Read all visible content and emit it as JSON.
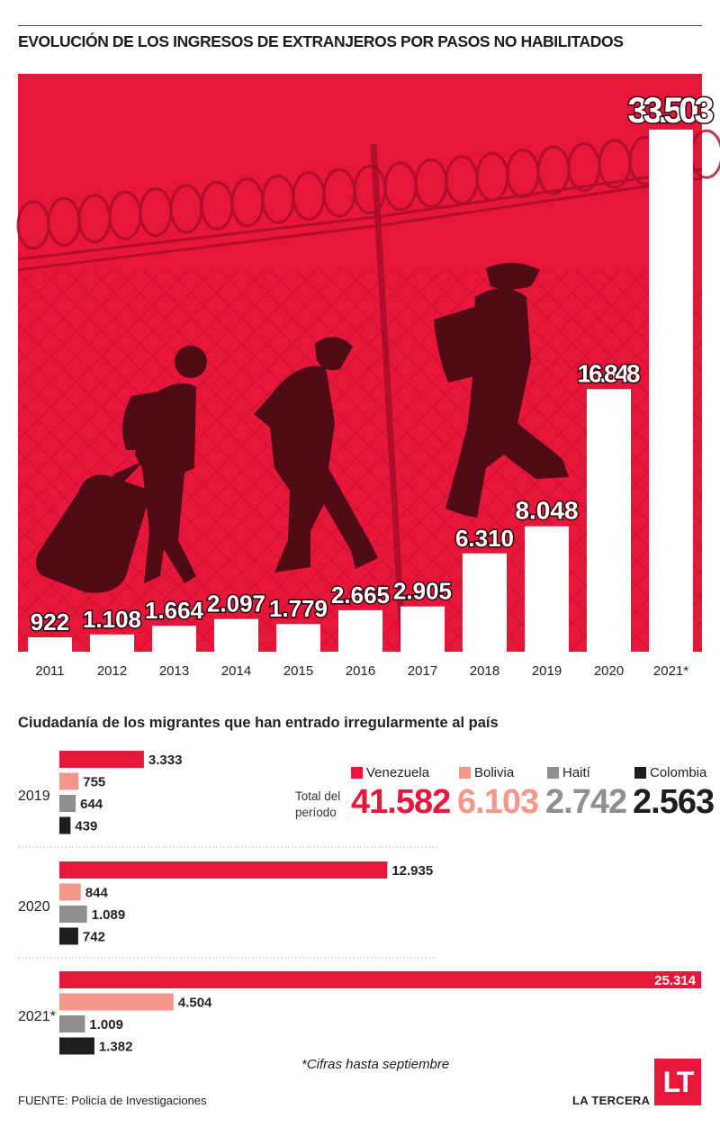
{
  "title": "EVOLUCIÓN DE LOS INGRESOS DE EXTRANJEROS POR PASOS NO HABILITADOS",
  "colors": {
    "panel": "#e8163a",
    "bar": "#ffffff",
    "venezuela": "#e8163a",
    "bolivia": "#f4978a",
    "haiti": "#8f8f8f",
    "colombia": "#1e1e1e"
  },
  "chart_data": [
    {
      "type": "bar",
      "title": "EVOLUCIÓN DE LOS INGRESOS DE EXTRANJEROS POR PASOS NO HABILITADOS",
      "categories": [
        "2011",
        "2012",
        "2013",
        "2014",
        "2015",
        "2016",
        "2017",
        "2018",
        "2019",
        "2020",
        "2021*"
      ],
      "values": [
        922,
        1108,
        1664,
        2097,
        1779,
        2665,
        2905,
        6310,
        8048,
        16848,
        33503
      ],
      "value_labels": [
        "922",
        "1.108",
        "1.664",
        "2.097",
        "1.779",
        "2.665",
        "2.905",
        "6.310",
        "8.048",
        "16.848",
        "33.503"
      ],
      "ylim": [
        0,
        33503
      ],
      "grid": false
    },
    {
      "type": "bar",
      "orientation": "horizontal",
      "title": "Ciudadanía de los migrantes que han entrado irregularmente al país",
      "categories": [
        "2019",
        "2020",
        "2021*"
      ],
      "series": [
        {
          "name": "Venezuela",
          "values": [
            3333,
            12935,
            25314
          ],
          "labels": [
            "3.333",
            "12.935",
            "25.314"
          ]
        },
        {
          "name": "Bolivia",
          "values": [
            755,
            844,
            4504
          ],
          "labels": [
            "755",
            "844",
            "4.504"
          ]
        },
        {
          "name": "Haití",
          "values": [
            644,
            1089,
            1009
          ],
          "labels": [
            "644",
            "1.089",
            "1.009"
          ]
        },
        {
          "name": "Colombia",
          "values": [
            439,
            742,
            1382
          ],
          "labels": [
            "439",
            "742",
            "1.382"
          ]
        }
      ],
      "totals_label_line1": "Total del",
      "totals_label_line2": "período",
      "totals": [
        "41.582",
        "6.103",
        "2.742",
        "2.563"
      ],
      "xlim": [
        0,
        25314
      ],
      "legend": "top-right"
    }
  ],
  "footnote": "*Cifras hasta septiembre",
  "source": "FUENTE: Policía de Investigaciones",
  "brand": "LA TERCERA",
  "logo_text": "LT"
}
